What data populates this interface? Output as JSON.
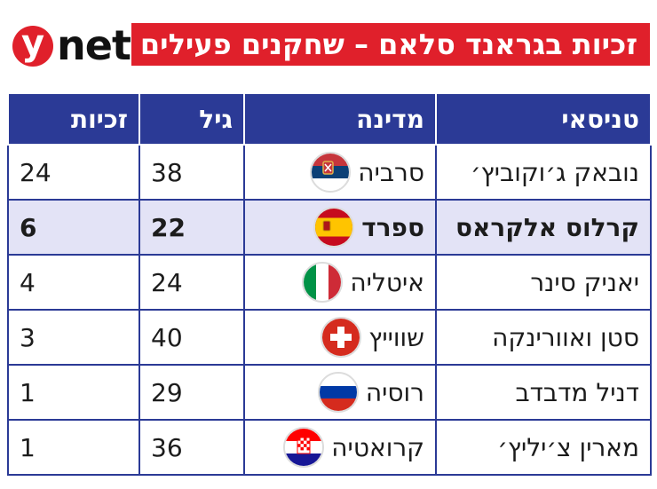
{
  "logo": {
    "y": "y",
    "net": "net"
  },
  "title": "זכיות בגראנד סלאם – שחקנים פעילים",
  "headers": [
    "טניסאי",
    "מדינה",
    "גיל",
    "זכיות"
  ],
  "rows": [
    {
      "player": "נובאק ג׳וקוביץ׳",
      "country": "סרביה",
      "age": "38",
      "titles": "24",
      "flag": "serbia-flag-icon"
    },
    {
      "player": "קרלוס אלקראס",
      "country": "ספרד",
      "age": "22",
      "titles": "6",
      "flag": "spain-flag-icon",
      "highlighted": true
    },
    {
      "player": "יאניק סינר",
      "country": "איטליה",
      "age": "24",
      "titles": "4",
      "flag": "italy-flag-icon"
    },
    {
      "player": "סטן ואוורינקה",
      "country": "שווייץ",
      "age": "40",
      "titles": "3",
      "flag": "switzerland-flag-icon"
    },
    {
      "player": "דניל מדבדב",
      "country": "רוסיה",
      "age": "29",
      "titles": "1",
      "flag": "russia-flag-icon"
    },
    {
      "player": "מארין צ׳יליץ׳",
      "country": "קרואטיה",
      "age": "36",
      "titles": "1",
      "flag": "croatia-flag-icon"
    }
  ],
  "colors": {
    "brand_red": "#e0202b",
    "header_blue": "#2b3a96",
    "highlight": "#e3e3f6"
  }
}
